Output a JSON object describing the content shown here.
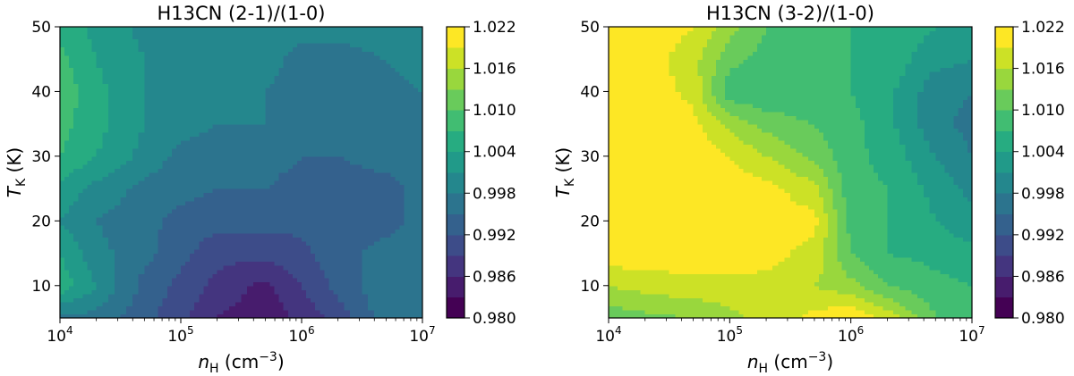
{
  "chart_data": [
    {
      "type": "heatmap",
      "title": "H13CN (2-1)/(1-0)",
      "xscale": "log",
      "xlim": [
        10000,
        10000000
      ],
      "ylim": [
        5,
        50
      ],
      "x_ticks": [
        10000,
        100000,
        1000000,
        10000000
      ],
      "x_tick_labels": [
        "10^4",
        "10^5",
        "10^6",
        "10^7"
      ],
      "y_ticks": [
        10,
        20,
        30,
        40,
        50
      ],
      "y_tick_labels": [
        "10",
        "20",
        "30",
        "40",
        "50"
      ],
      "xlabel": {
        "base": "n",
        "sub": "H",
        "unit_pre": " (cm",
        "unit_exp": "−3",
        "unit_post": ")"
      },
      "ylabel": {
        "base": "T",
        "sub": "K",
        "unit": " (K)"
      },
      "colorbar": {
        "colormap": "viridis",
        "levels": [
          0.98,
          0.983,
          0.986,
          0.989,
          0.992,
          0.995,
          0.998,
          1.001,
          1.004,
          1.007,
          1.01,
          1.013,
          1.016,
          1.019,
          1.022
        ],
        "tick_values": [
          0.98,
          0.986,
          0.992,
          0.998,
          1.004,
          1.01,
          1.016,
          1.022
        ],
        "tick_labels": [
          "0.980",
          "0.986",
          "0.992",
          "0.998",
          "1.004",
          "1.010",
          "1.016",
          "1.022"
        ]
      },
      "x": [
        10000,
        20000,
        50000,
        100000,
        200000,
        500000,
        1000000,
        2000000,
        5000000,
        10000000
      ],
      "y": [
        5,
        10,
        15,
        20,
        25,
        30,
        35,
        40,
        45,
        50
      ],
      "z": [
        [
          0.997,
          0.997,
          0.993,
          0.99,
          0.986,
          0.984,
          0.987,
          0.99,
          0.997,
          0.998
        ],
        [
          1.006,
          1.001,
          0.994,
          0.991,
          0.988,
          0.985,
          0.989,
          0.993,
          0.997,
          0.998
        ],
        [
          1.004,
          0.999,
          0.996,
          0.993,
          0.99,
          0.99,
          0.991,
          0.994,
          0.996,
          0.997
        ],
        [
          1.001,
          0.998,
          0.996,
          0.994,
          0.993,
          0.993,
          0.993,
          0.994,
          0.994,
          0.996
        ],
        [
          1.003,
          1.0,
          0.997,
          0.996,
          0.995,
          0.995,
          0.994,
          0.994,
          0.994,
          0.996
        ],
        [
          1.007,
          1.004,
          1.0,
          0.997,
          0.997,
          0.996,
          0.995,
          0.995,
          0.996,
          0.997
        ],
        [
          1.008,
          1.005,
          1.001,
          0.999,
          0.998,
          0.998,
          0.996,
          0.996,
          0.997,
          0.998
        ],
        [
          1.009,
          1.005,
          1.001,
          0.999,
          0.999,
          0.998,
          0.997,
          0.997,
          0.997,
          0.998
        ],
        [
          1.008,
          1.004,
          1.001,
          0.999,
          0.999,
          0.999,
          0.997,
          0.997,
          0.998,
          0.999
        ],
        [
          1.006,
          1.003,
          1.0,
          0.999,
          0.999,
          0.999,
          0.999,
          0.999,
          0.999,
          0.999
        ]
      ]
    },
    {
      "type": "heatmap",
      "title": "H13CN (3-2)/(1-0)",
      "xscale": "log",
      "xlim": [
        10000,
        10000000
      ],
      "ylim": [
        5,
        50
      ],
      "x_ticks": [
        10000,
        100000,
        1000000,
        10000000
      ],
      "x_tick_labels": [
        "10^4",
        "10^5",
        "10^6",
        "10^7"
      ],
      "y_ticks": [
        10,
        20,
        30,
        40,
        50
      ],
      "y_tick_labels": [
        "10",
        "20",
        "30",
        "40",
        "50"
      ],
      "xlabel": {
        "base": "n",
        "sub": "H",
        "unit_pre": " (cm",
        "unit_exp": "−3",
        "unit_post": ")"
      },
      "ylabel": {
        "base": "T",
        "sub": "K",
        "unit": " (K)"
      },
      "colorbar": {
        "colormap": "viridis",
        "levels": [
          0.98,
          0.983,
          0.986,
          0.989,
          0.992,
          0.995,
          0.998,
          1.001,
          1.004,
          1.007,
          1.01,
          1.013,
          1.016,
          1.019,
          1.022
        ],
        "tick_values": [
          0.98,
          0.986,
          0.992,
          0.998,
          1.004,
          1.01,
          1.016,
          1.022
        ],
        "tick_labels": [
          "0.980",
          "0.986",
          "0.992",
          "0.998",
          "1.004",
          "1.010",
          "1.016",
          "1.022"
        ]
      },
      "x": [
        10000,
        20000,
        50000,
        100000,
        200000,
        500000,
        1000000,
        2000000,
        5000000,
        10000000
      ],
      "y": [
        5,
        10,
        15,
        20,
        25,
        30,
        35,
        40,
        45,
        50
      ],
      "z": [
        [
          1.011,
          1.012,
          1.013,
          1.015,
          1.017,
          1.02,
          1.022,
          1.018,
          1.01,
          1.008
        ],
        [
          1.016,
          1.017,
          1.018,
          1.018,
          1.018,
          1.016,
          1.014,
          1.01,
          1.008,
          1.007
        ],
        [
          1.021,
          1.021,
          1.021,
          1.021,
          1.02,
          1.018,
          1.01,
          1.007,
          1.006,
          1.005
        ],
        [
          1.021,
          1.021,
          1.021,
          1.021,
          1.021,
          1.02,
          1.009,
          1.007,
          1.004,
          1.002
        ],
        [
          1.021,
          1.021,
          1.021,
          1.021,
          1.02,
          1.017,
          1.008,
          1.007,
          1.003,
          1.0
        ],
        [
          1.021,
          1.021,
          1.021,
          1.019,
          1.016,
          1.012,
          1.008,
          1.006,
          1.001,
          0.998
        ],
        [
          1.021,
          1.021,
          1.02,
          1.015,
          1.012,
          1.01,
          1.008,
          1.005,
          0.999,
          0.997
        ],
        [
          1.021,
          1.021,
          1.018,
          1.008,
          1.007,
          1.007,
          1.007,
          1.005,
          0.999,
          0.998
        ],
        [
          1.021,
          1.021,
          1.017,
          1.011,
          1.009,
          1.008,
          1.007,
          1.006,
          1.002,
          1.001
        ],
        [
          1.021,
          1.021,
          1.019,
          1.014,
          1.01,
          1.008,
          1.007,
          1.006,
          1.004,
          1.004
        ]
      ]
    }
  ]
}
